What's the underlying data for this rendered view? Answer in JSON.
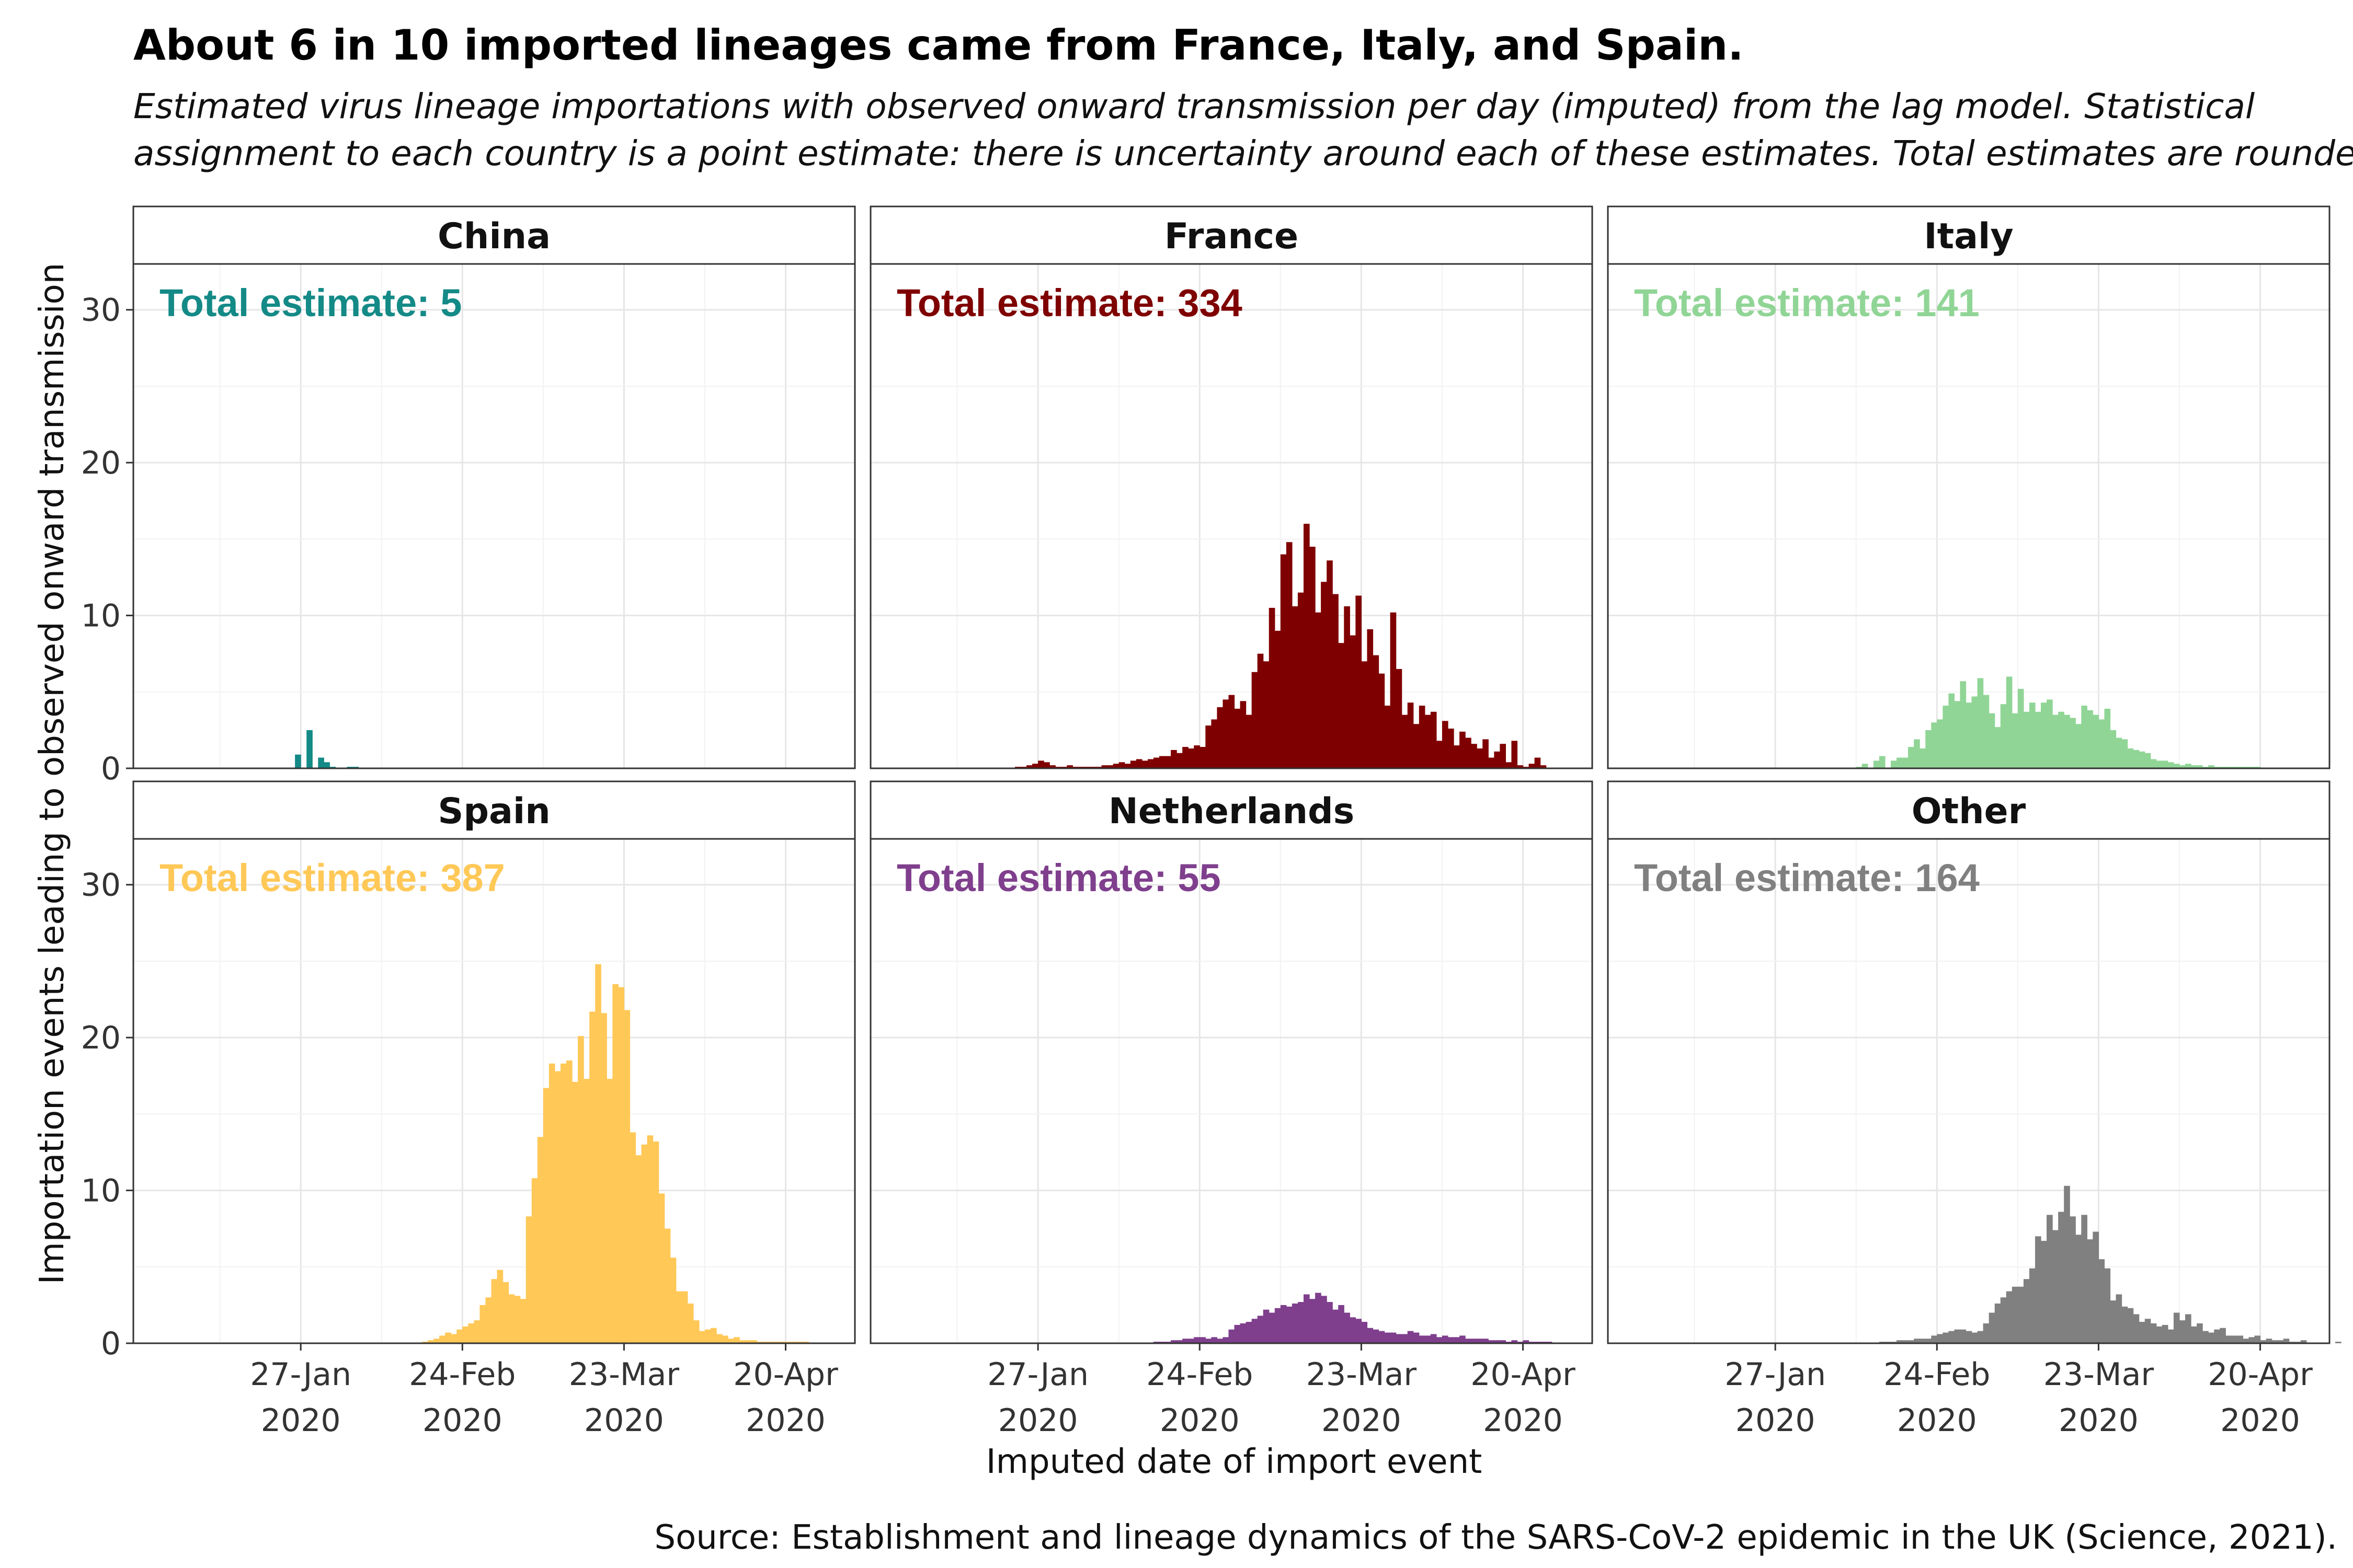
{
  "title": "About 6 in 10 imported lineages came from France, Italy, and Spain.",
  "subtitle": [
    "Estimated virus lineage importations with observed onward transmission per day (imputed) from the lag model. Statistical",
    "assignment to each country is a point estimate: there is uncertainty around each of these estimates. Total estimates are rounded."
  ],
  "source": "Source: Establishment and lineage dynamics of the SARS-CoV-2 epidemic in the UK (Science, 2021).",
  "chart_data": {
    "type": "bar",
    "xlabel": "Imputed date of import event",
    "ylabel": "Importation events leading to observed onward transmission",
    "ylim": [
      0,
      33
    ],
    "y_ticks": [
      "0",
      "10",
      "20",
      "30"
    ],
    "x_axis": {
      "start_date": "2019-12-29",
      "end_date": "2020-05-02",
      "bin_days": 1,
      "tick_dates": [
        "2020-01-27",
        "2020-02-24",
        "2020-03-23",
        "2020-04-20"
      ],
      "tick_labels": [
        [
          "27-Jan",
          "2020"
        ],
        [
          "24-Feb",
          "2020"
        ],
        [
          "23-Mar",
          "2020"
        ],
        [
          "20-Apr",
          "2020"
        ]
      ]
    },
    "grid": true,
    "facets": [
      {
        "name": "China",
        "total_label": "Total estimate: 5",
        "color": "#148A87",
        "values": [
          0,
          0,
          0,
          0,
          0,
          0,
          0,
          0,
          0,
          0,
          0,
          0,
          0,
          0,
          0,
          0,
          0,
          0,
          0,
          0,
          0,
          0,
          0,
          0,
          0,
          0,
          0,
          0,
          0.9,
          0,
          2.5,
          0,
          0.7,
          0.4,
          0.1,
          0,
          0,
          0.1,
          0.1,
          0,
          0,
          0,
          0,
          0,
          0,
          0,
          0,
          0,
          0,
          0,
          0,
          0,
          0,
          0,
          0,
          0,
          0,
          0,
          0,
          0,
          0,
          0,
          0,
          0,
          0,
          0,
          0,
          0,
          0,
          0,
          0,
          0,
          0,
          0,
          0,
          0,
          0,
          0,
          0,
          0,
          0,
          0,
          0,
          0,
          0,
          0,
          0,
          0,
          0,
          0,
          0,
          0,
          0,
          0,
          0,
          0,
          0,
          0,
          0,
          0,
          0,
          0,
          0,
          0,
          0,
          0,
          0,
          0,
          0,
          0,
          0,
          0,
          0,
          0,
          0,
          0,
          0,
          0,
          0,
          0,
          0,
          0,
          0
        ]
      },
      {
        "name": "France",
        "total_label": "Total estimate: 334",
        "color": "#7F0000",
        "values": [
          0,
          0,
          0,
          0,
          0,
          0,
          0,
          0,
          0,
          0,
          0,
          0,
          0,
          0,
          0,
          0,
          0,
          0,
          0,
          0,
          0,
          0,
          0,
          0,
          0,
          0.1,
          0.1,
          0.2,
          0.3,
          0.5,
          0.4,
          0.2,
          0.1,
          0.1,
          0.2,
          0.1,
          0.1,
          0.1,
          0.1,
          0.1,
          0.2,
          0.2,
          0.3,
          0.4,
          0.3,
          0.5,
          0.6,
          0.5,
          0.6,
          0.7,
          0.8,
          0.8,
          1.2,
          1.0,
          1.4,
          1.3,
          1.5,
          1.4,
          2.8,
          3.2,
          4.0,
          4.5,
          4.8,
          3.9,
          4.4,
          3.5,
          6.3,
          7.5,
          7.0,
          10.5,
          9.0,
          14.0,
          14.8,
          10.6,
          11.5,
          16.0,
          14.5,
          10.2,
          12.2,
          13.6,
          11.4,
          8.2,
          10.6,
          8.7,
          11.3,
          7.0,
          9.1,
          7.4,
          6.2,
          4.1,
          10.2,
          6.5,
          3.5,
          4.3,
          2.9,
          4.1,
          3.5,
          3.7,
          1.8,
          3.1,
          2.6,
          1.5,
          2.4,
          2.0,
          1.6,
          1.3,
          1.9,
          0.7,
          1.1,
          1.6,
          0.4,
          1.8,
          0.2,
          0.1,
          0.3,
          0.7,
          0.2,
          0,
          0,
          0,
          0,
          0,
          0,
          0,
          0,
          0,
          0,
          0,
          0,
          0.5
        ]
      },
      {
        "name": "Italy",
        "total_label": "Total estimate: 141",
        "color": "#90D596",
        "values": [
          0,
          0,
          0,
          0,
          0,
          0,
          0,
          0,
          0,
          0,
          0,
          0,
          0,
          0,
          0,
          0,
          0,
          0,
          0,
          0,
          0,
          0,
          0,
          0,
          0,
          0,
          0,
          0,
          0,
          0,
          0,
          0,
          0,
          0,
          0,
          0,
          0,
          0,
          0,
          0,
          0,
          0,
          0,
          0.1,
          0.3,
          0,
          0.5,
          0.8,
          0,
          0.5,
          0.7,
          0.7,
          1.4,
          1.9,
          1.3,
          2.5,
          3.0,
          3.2,
          4.1,
          4.9,
          4.4,
          5.7,
          4.3,
          4.7,
          5.9,
          4.8,
          3.6,
          2.7,
          4.2,
          6.0,
          3.6,
          5.2,
          3.7,
          4.3,
          3.7,
          4.3,
          4.5,
          3.5,
          3.7,
          3.5,
          3.3,
          2.9,
          4.1,
          3.8,
          3.5,
          3.2,
          3.9,
          2.5,
          2.0,
          1.9,
          1.3,
          1.2,
          1.1,
          1.0,
          0.6,
          0.5,
          0.5,
          0.4,
          0.3,
          0.2,
          0.3,
          0.2,
          0.2,
          0.1,
          0.2,
          0.1,
          0.1,
          0.1,
          0.1,
          0.1,
          0.1,
          0.1,
          0.1,
          0,
          0,
          0,
          0,
          0,
          0,
          0,
          0,
          0,
          0,
          0,
          0,
          0,
          0,
          0,
          0,
          0,
          0
        ]
      },
      {
        "name": "Spain",
        "total_label": "Total estimate: 387",
        "color": "#FFC857",
        "values": [
          0,
          0,
          0,
          0,
          0,
          0,
          0,
          0,
          0,
          0,
          0,
          0,
          0,
          0,
          0,
          0,
          0,
          0,
          0,
          0,
          0,
          0,
          0,
          0,
          0,
          0,
          0,
          0,
          0,
          0,
          0,
          0,
          0,
          0,
          0,
          0,
          0,
          0,
          0,
          0,
          0,
          0,
          0,
          0,
          0,
          0,
          0,
          0,
          0,
          0,
          0.1,
          0.2,
          0.3,
          0.5,
          0.7,
          0.6,
          0.9,
          1.1,
          1.3,
          1.5,
          2.5,
          3.0,
          4.2,
          4.8,
          4.0,
          3.2,
          3.1,
          2.9,
          8.3,
          10.8,
          13.5,
          16.7,
          18.3,
          17.8,
          18.3,
          18.5,
          17.1,
          20.1,
          17.3,
          21.7,
          24.8,
          21.6,
          17.3,
          23.5,
          23.3,
          21.8,
          13.8,
          12.3,
          13.0,
          13.6,
          13.2,
          9.8,
          7.5,
          5.6,
          3.4,
          3.4,
          2.6,
          1.5,
          0.8,
          0.9,
          1.0,
          0.6,
          0.5,
          0.3,
          0.4,
          0.2,
          0.2,
          0.2,
          0.1,
          0.1,
          0.1,
          0.1,
          0.1,
          0.1,
          0.1,
          0.1,
          0.1,
          0,
          0,
          0,
          0,
          0,
          0,
          0,
          0,
          0,
          0,
          0
        ]
      },
      {
        "name": "Netherlands",
        "total_label": "Total estimate: 55",
        "color": "#7F3F8D",
        "values": [
          0,
          0,
          0,
          0,
          0,
          0,
          0,
          0,
          0,
          0,
          0,
          0,
          0,
          0,
          0,
          0,
          0,
          0,
          0,
          0,
          0,
          0,
          0,
          0,
          0,
          0,
          0,
          0,
          0,
          0,
          0,
          0,
          0,
          0,
          0,
          0,
          0,
          0,
          0,
          0,
          0,
          0,
          0,
          0,
          0,
          0,
          0,
          0,
          0,
          0.1,
          0.1,
          0.1,
          0.2,
          0.2,
          0.3,
          0.3,
          0.4,
          0.4,
          0.3,
          0.4,
          0.3,
          0.4,
          0.9,
          1.2,
          1.3,
          1.4,
          1.6,
          1.8,
          2.2,
          2.0,
          2.3,
          2.5,
          2.4,
          2.6,
          2.7,
          3.2,
          2.9,
          3.3,
          3.1,
          2.7,
          2.2,
          2.5,
          2.0,
          1.7,
          1.6,
          1.4,
          1.0,
          0.9,
          0.8,
          0.7,
          0.7,
          0.6,
          0.6,
          0.8,
          0.7,
          0.5,
          0.5,
          0.6,
          0.4,
          0.5,
          0.4,
          0.4,
          0.5,
          0.3,
          0.3,
          0.3,
          0.3,
          0.2,
          0.2,
          0.2,
          0.1,
          0.2,
          0.1,
          0.2,
          0.1,
          0.1,
          0.1,
          0.1,
          0,
          0,
          0,
          0,
          0,
          0,
          0
        ]
      },
      {
        "name": "Other",
        "total_label": "Total estimate: 164",
        "color": "#808080",
        "values": [
          0,
          0,
          0,
          0,
          0,
          0,
          0,
          0,
          0,
          0,
          0,
          0,
          0,
          0,
          0,
          0,
          0,
          0,
          0,
          0,
          0,
          0,
          0,
          0,
          0,
          0,
          0,
          0,
          0,
          0,
          0,
          0,
          0,
          0,
          0,
          0,
          0,
          0,
          0,
          0,
          0,
          0,
          0,
          0,
          0,
          0,
          0,
          0.1,
          0.1,
          0.1,
          0.2,
          0.2,
          0.2,
          0.3,
          0.3,
          0.3,
          0.5,
          0.6,
          0.7,
          0.8,
          0.9,
          0.9,
          0.8,
          0.7,
          0.8,
          1.3,
          2.0,
          2.6,
          3.0,
          3.4,
          3.7,
          3.7,
          4.2,
          4.9,
          7.0,
          6.7,
          8.4,
          7.4,
          8.6,
          10.3,
          8.3,
          7.1,
          8.4,
          6.8,
          7.3,
          5.5,
          4.9,
          2.8,
          3.2,
          2.4,
          2.3,
          1.9,
          1.4,
          1.6,
          1.3,
          1.1,
          1.2,
          0.9,
          2.0,
          1.5,
          1.9,
          1.1,
          1.3,
          0.8,
          0.7,
          0.9,
          1.0,
          0.5,
          0.5,
          0.5,
          0.3,
          0.4,
          0.5,
          0.2,
          0.3,
          0.2,
          0.2,
          0.3,
          0.1,
          0.1,
          0.2,
          0,
          0,
          0,
          0,
          0,
          0.1,
          0,
          0
        ]
      }
    ]
  }
}
